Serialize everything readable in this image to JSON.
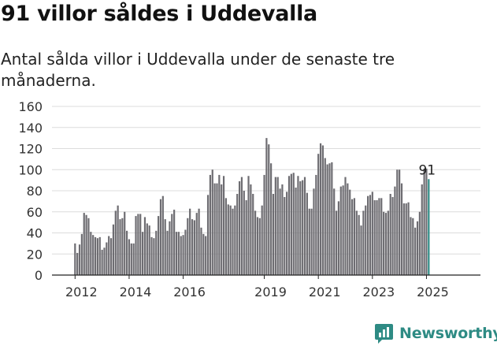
{
  "title": "91 villor såldes i Uddevalla",
  "subtitle": "Antal sålda villor i Uddevalla under de senaste tre månaderna.",
  "brand": {
    "name": "Newsworthy",
    "color": "#2e8b84"
  },
  "chart_data": {
    "type": "bar",
    "title": "91 villor såldes i Uddevalla",
    "subtitle": "Antal sålda villor i Uddevalla under de senaste tre månaderna.",
    "xlabel": "",
    "ylabel": "",
    "ylim": [
      0,
      160
    ],
    "yticks": [
      0,
      20,
      40,
      60,
      80,
      100,
      120,
      140,
      160
    ],
    "xtick_labels": [
      "2012",
      "2014",
      "2016",
      "2019",
      "2021",
      "2023",
      "2025"
    ],
    "grid": true,
    "bar_color": "#6e6d72",
    "highlight_color": "#2e8b84",
    "annotation": {
      "label": "91",
      "target": "last"
    },
    "series": [
      {
        "period": "2012",
        "values": [
          30,
          21,
          29,
          39,
          59,
          57,
          54,
          41,
          38,
          36,
          35,
          36
        ]
      },
      {
        "period": "2013",
        "values": [
          24,
          26,
          31,
          37,
          35,
          48,
          61,
          66,
          53,
          54,
          60,
          42
        ]
      },
      {
        "period": "2014",
        "values": [
          34,
          30,
          30,
          56,
          58,
          58,
          41,
          55,
          49,
          47,
          36,
          35
        ]
      },
      {
        "period": "2015",
        "values": [
          42,
          56,
          72,
          75,
          53,
          42,
          51,
          58,
          62,
          41,
          41,
          37
        ]
      },
      {
        "period": "2016",
        "values": [
          38,
          43,
          54,
          63,
          53,
          52,
          59,
          63,
          45,
          39,
          37,
          76
        ]
      },
      {
        "period": "2017",
        "values": [
          95,
          100,
          87,
          87,
          95,
          86,
          94,
          73,
          67,
          66,
          63,
          66
        ]
      },
      {
        "period": "2018",
        "values": [
          77,
          89,
          93,
          80,
          71,
          94,
          86,
          77,
          61,
          55,
          54,
          66
        ]
      },
      {
        "period": "2019",
        "values": [
          95,
          130,
          124,
          106,
          77,
          93,
          93,
          82,
          86,
          74,
          79,
          94
        ]
      },
      {
        "period": "2020",
        "values": [
          96,
          97,
          83,
          94,
          89,
          90,
          93,
          78,
          63,
          63,
          82,
          95
        ]
      },
      {
        "period": "2021",
        "values": [
          115,
          125,
          123,
          111,
          105,
          106,
          107,
          82,
          61,
          70,
          84,
          85
        ]
      },
      {
        "period": "2022",
        "values": [
          93,
          87,
          81,
          72,
          73,
          61,
          57,
          47,
          61,
          66,
          75,
          76
        ]
      },
      {
        "period": "2023",
        "values": [
          79,
          71,
          71,
          73,
          73,
          60,
          59,
          61,
          77,
          74,
          84,
          100
        ]
      },
      {
        "period": "2024",
        "values": [
          100,
          87,
          68,
          68,
          69,
          55,
          54,
          45,
          51,
          60,
          86,
          101
        ]
      },
      {
        "period": "2025",
        "values": [
          101,
          91
        ]
      }
    ]
  }
}
